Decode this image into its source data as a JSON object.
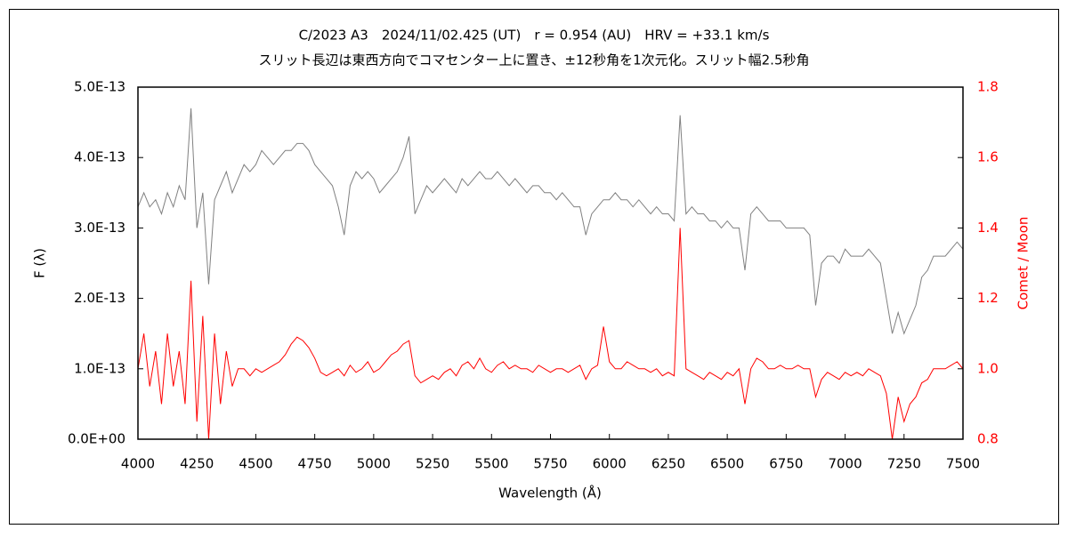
{
  "chart_data": {
    "type": "line",
    "title": "C/2023 A3　2024/11/02.425 (UT)　r = 0.954 (AU)　HRV = +33.1 km/s",
    "subtitle": "スリット長辺は東西方向でコマセンター上に置き、±12秒角を1次元化。スリット幅2.5秒角",
    "xlabel": "Wavelength (Å)",
    "ylabel": "F (λ)",
    "y2label": "Comet / Moon",
    "xlim": [
      4000,
      7500
    ],
    "xticks": [
      4000,
      4250,
      4500,
      4750,
      5000,
      5250,
      5500,
      5750,
      6000,
      6250,
      6500,
      6750,
      7000,
      7250,
      7500
    ],
    "ylim": [
      0,
      5e-13
    ],
    "yticks": [
      {
        "value": 0,
        "label": "0.0E+00"
      },
      {
        "value": 1e-13,
        "label": "1.0E-13"
      },
      {
        "value": 2e-13,
        "label": "2.0E-13"
      },
      {
        "value": 3e-13,
        "label": "3.0E-13"
      },
      {
        "value": 4e-13,
        "label": "4.0E-13"
      },
      {
        "value": 5e-13,
        "label": "5.0E-13"
      }
    ],
    "y2lim": [
      0.8,
      1.8
    ],
    "y2ticks": [
      0.8,
      {
        "value": 1,
        "label": "1.0"
      },
      1.2,
      1.4,
      1.6,
      1.8
    ],
    "y2color": "#ff0000",
    "grid": false,
    "x": [
      4000,
      4025,
      4050,
      4075,
      4100,
      4125,
      4150,
      4175,
      4200,
      4225,
      4250,
      4275,
      4300,
      4325,
      4350,
      4375,
      4400,
      4425,
      4450,
      4475,
      4500,
      4525,
      4550,
      4575,
      4600,
      4625,
      4650,
      4675,
      4700,
      4725,
      4750,
      4775,
      4800,
      4825,
      4850,
      4875,
      4900,
      4925,
      4950,
      4975,
      5000,
      5025,
      5050,
      5075,
      5100,
      5125,
      5150,
      5175,
      5200,
      5225,
      5250,
      5275,
      5300,
      5325,
      5350,
      5375,
      5400,
      5425,
      5450,
      5475,
      5500,
      5525,
      5550,
      5575,
      5600,
      5625,
      5650,
      5675,
      5700,
      5725,
      5750,
      5775,
      5800,
      5825,
      5850,
      5875,
      5900,
      5925,
      5950,
      5975,
      6000,
      6025,
      6050,
      6075,
      6100,
      6125,
      6150,
      6175,
      6200,
      6225,
      6250,
      6275,
      6300,
      6325,
      6350,
      6375,
      6400,
      6425,
      6450,
      6475,
      6500,
      6525,
      6550,
      6575,
      6600,
      6625,
      6650,
      6675,
      6700,
      6725,
      6750,
      6775,
      6800,
      6825,
      6850,
      6875,
      6900,
      6925,
      6950,
      6975,
      7000,
      7025,
      7050,
      7075,
      7100,
      7125,
      7150,
      7175,
      7200,
      7225,
      7250,
      7275,
      7300,
      7325,
      7350,
      7375,
      7400,
      7425,
      7450,
      7475,
      7500
    ],
    "series": [
      {
        "color": "#808080",
        "values": [
          3.3e-13,
          3.5e-13,
          3.3e-13,
          3.4e-13,
          3.2e-13,
          3.5e-13,
          3.3e-13,
          3.6e-13,
          3.4e-13,
          4.7e-13,
          3e-13,
          3.5e-13,
          2.2e-13,
          3.4e-13,
          3.6e-13,
          3.8e-13,
          3.5e-13,
          3.7e-13,
          3.9e-13,
          3.8e-13,
          3.9e-13,
          4.1e-13,
          4e-13,
          3.9e-13,
          4e-13,
          4.1e-13,
          4.1e-13,
          4.2e-13,
          4.2e-13,
          4.1e-13,
          3.9e-13,
          3.8e-13,
          3.7e-13,
          3.6e-13,
          3.3e-13,
          2.9e-13,
          3.6e-13,
          3.8e-13,
          3.7e-13,
          3.8e-13,
          3.7e-13,
          3.5e-13,
          3.6e-13,
          3.7e-13,
          3.8e-13,
          4e-13,
          4.3e-13,
          3.2e-13,
          3.4e-13,
          3.6e-13,
          3.5e-13,
          3.6e-13,
          3.7e-13,
          3.6e-13,
          3.5e-13,
          3.7e-13,
          3.6e-13,
          3.7e-13,
          3.8e-13,
          3.7e-13,
          3.7e-13,
          3.8e-13,
          3.7e-13,
          3.6e-13,
          3.7e-13,
          3.6e-13,
          3.5e-13,
          3.6e-13,
          3.6e-13,
          3.5e-13,
          3.5e-13,
          3.4e-13,
          3.5e-13,
          3.4e-13,
          3.3e-13,
          3.3e-13,
          2.9e-13,
          3.2e-13,
          3.3e-13,
          3.4e-13,
          3.4e-13,
          3.5e-13,
          3.4e-13,
          3.4e-13,
          3.3e-13,
          3.4e-13,
          3.3e-13,
          3.2e-13,
          3.3e-13,
          3.2e-13,
          3.2e-13,
          3.1e-13,
          4.6e-13,
          3.2e-13,
          3.3e-13,
          3.2e-13,
          3.2e-13,
          3.1e-13,
          3.1e-13,
          3e-13,
          3.1e-13,
          3e-13,
          3e-13,
          2.4e-13,
          3.2e-13,
          3.3e-13,
          3.2e-13,
          3.1e-13,
          3.1e-13,
          3.1e-13,
          3e-13,
          3e-13,
          3e-13,
          3e-13,
          2.9e-13,
          1.9e-13,
          2.5e-13,
          2.6e-13,
          2.6e-13,
          2.5e-13,
          2.7e-13,
          2.6e-13,
          2.6e-13,
          2.6e-13,
          2.7e-13,
          2.6e-13,
          2.5e-13,
          2e-13,
          1.5e-13,
          1.8e-13,
          1.5e-13,
          1.7e-13,
          1.9e-13,
          2.3e-13,
          2.4e-13,
          2.6e-13,
          2.6e-13,
          2.6e-13,
          2.7e-13,
          2.8e-13,
          2.7e-13
        ]
      },
      {
        "color": "#ff0000",
        "axis": "y2",
        "values": [
          1.0,
          1.1,
          0.95,
          1.05,
          0.9,
          1.1,
          0.95,
          1.05,
          0.9,
          1.25,
          0.85,
          1.15,
          0.8,
          1.1,
          0.9,
          1.05,
          0.95,
          1.0,
          1.0,
          0.98,
          1.0,
          0.99,
          1.0,
          1.01,
          1.02,
          1.04,
          1.07,
          1.09,
          1.08,
          1.06,
          1.03,
          0.99,
          0.98,
          0.99,
          1.0,
          0.98,
          1.01,
          0.99,
          1.0,
          1.02,
          0.99,
          1.0,
          1.02,
          1.04,
          1.05,
          1.07,
          1.08,
          0.98,
          0.96,
          0.97,
          0.98,
          0.97,
          0.99,
          1.0,
          0.98,
          1.01,
          1.02,
          1.0,
          1.03,
          1.0,
          0.99,
          1.01,
          1.02,
          1.0,
          1.01,
          1.0,
          1.0,
          0.99,
          1.01,
          1.0,
          0.99,
          1.0,
          1.0,
          0.99,
          1.0,
          1.01,
          0.97,
          1.0,
          1.01,
          1.12,
          1.02,
          1.0,
          1.0,
          1.02,
          1.01,
          1.0,
          1.0,
          0.99,
          1.0,
          0.98,
          0.99,
          0.98,
          1.4,
          1.0,
          0.99,
          0.98,
          0.97,
          0.99,
          0.98,
          0.97,
          0.99,
          0.98,
          1.0,
          0.9,
          1.0,
          1.03,
          1.02,
          1.0,
          1.0,
          1.01,
          1.0,
          1.0,
          1.01,
          1.0,
          1.0,
          0.92,
          0.97,
          0.99,
          0.98,
          0.97,
          0.99,
          0.98,
          0.99,
          0.98,
          1.0,
          0.99,
          0.98,
          0.93,
          0.8,
          0.92,
          0.85,
          0.9,
          0.92,
          0.96,
          0.97,
          1.0,
          1.0,
          1.0,
          1.01,
          1.02,
          1.0
        ]
      }
    ]
  }
}
